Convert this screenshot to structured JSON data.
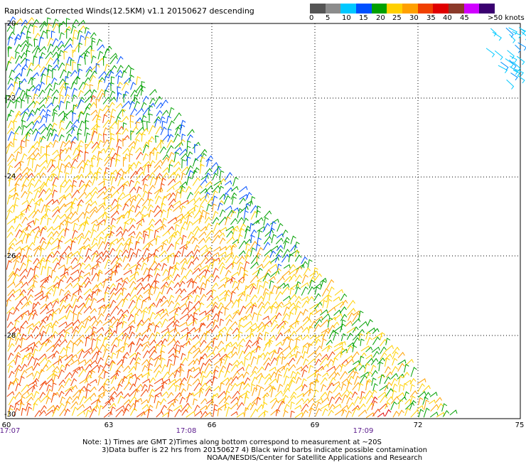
{
  "title": "Rapidscat Corrected Winds(12.5KM) v1.1 20150627 descending",
  "legend": {
    "labels": [
      "0",
      "5",
      "10",
      "15",
      "20",
      "25",
      "30",
      "35",
      "40",
      "45",
      ">50 knots"
    ],
    "colors": [
      "#555555",
      "#8c8c8c",
      "#00c8ff",
      "#0050ff",
      "#00a000",
      "#ffd000",
      "#ffa000",
      "#f04000",
      "#e00000",
      "#8b3a2a",
      "#d000ff",
      "#3a0070"
    ]
  },
  "map": {
    "lat_labels": [
      "-20",
      "-22",
      "-24",
      "-26",
      "-28",
      "-30"
    ],
    "lon_labels": [
      "60",
      "63",
      "66",
      "69",
      "72",
      "75"
    ],
    "time_labels": [
      "17:07",
      "17:08",
      "17:09"
    ]
  },
  "notes": {
    "line1": "Note: 1) Times are GMT 2)Times along bottom correspond to measurement at ~20S",
    "line2": "3)Data buffer is 22 hrs from 20150627 4) Black wind barbs indicate possible contamination",
    "line3": "NOAA/NESDIS/Center for Satellite Applications and Research"
  }
}
